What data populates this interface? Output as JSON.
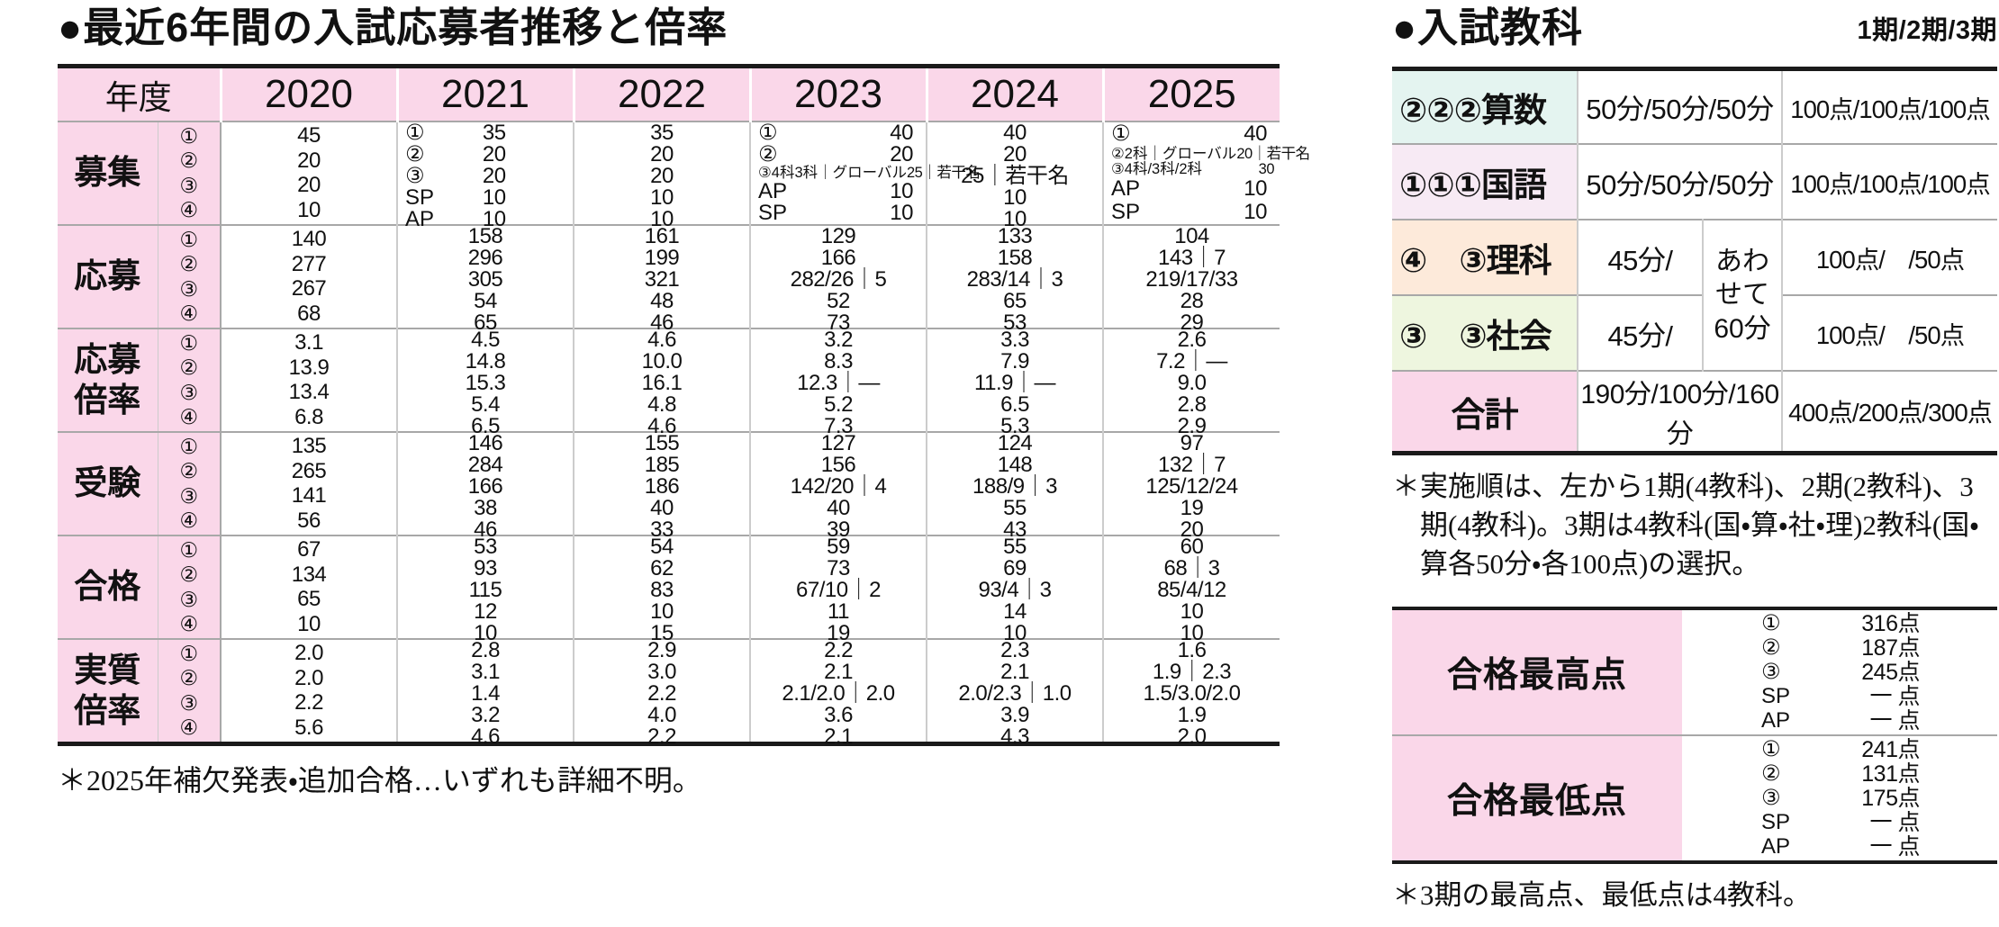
{
  "colors": {
    "pink": "#fad7e9",
    "cyan": "#e4f4f0",
    "lavender": "#f7eaf4",
    "peach": "#fdeada",
    "green": "#eef6df",
    "border_dark": "#1a1a1a",
    "border_gray": "#a8a8a8",
    "border_light": "#cccccc"
  },
  "left": {
    "title": "●最近6年間の入試応募者推移と倍率",
    "year_header": "年度",
    "years": [
      "2020",
      "2021",
      "2022",
      "2023",
      "2024",
      "2025"
    ],
    "rows": [
      {
        "label": "募集",
        "marks": [
          "①",
          "②",
          "③",
          "④"
        ],
        "cells": [
          {
            "type": "c",
            "lines": [
              "45",
              "20",
              "20",
              "10"
            ]
          },
          {
            "type": "p",
            "mid": true,
            "lines": [
              [
                "①",
                "35"
              ],
              [
                "②",
                "20"
              ],
              [
                "③",
                "20"
              ],
              [
                "SP",
                "10"
              ],
              [
                "AP",
                "10"
              ]
            ]
          },
          {
            "type": "c",
            "lines": [
              "35",
              "20",
              "20",
              "10",
              "10"
            ]
          },
          {
            "type": "p",
            "lines": [
              [
                "①",
                "40"
              ],
              [
                "②",
                "20"
              ],
              [
                "③4科3科｜グローバル",
                "25｜若干名"
              ],
              [
                "AP",
                "10"
              ],
              [
                "SP",
                "10"
              ]
            ]
          },
          {
            "type": "c",
            "lines": [
              "40",
              "20",
              "25｜若干名",
              "10",
              "10"
            ]
          },
          {
            "type": "p",
            "lines": [
              [
                "①",
                "40"
              ],
              [
                "②2科｜グローバル",
                "20｜若干名"
              ],
              [
                "③4科/3科/2科",
                "30"
              ],
              [
                "AP",
                "10"
              ],
              [
                "SP",
                "10"
              ]
            ]
          }
        ]
      },
      {
        "label": "応募",
        "marks": [
          "①",
          "②",
          "③",
          "④"
        ],
        "cells": [
          {
            "type": "c",
            "lines": [
              "140",
              "277",
              "267",
              "68"
            ]
          },
          {
            "type": "c",
            "lines": [
              "158",
              "296",
              "305",
              "54",
              "65"
            ]
          },
          {
            "type": "c",
            "lines": [
              "161",
              "199",
              "321",
              "48",
              "46"
            ]
          },
          {
            "type": "c",
            "lines": [
              "129",
              "166",
              "282/26｜5",
              "52",
              "73"
            ]
          },
          {
            "type": "c",
            "lines": [
              "133",
              "158",
              "283/14｜3",
              "65",
              "53"
            ]
          },
          {
            "type": "c",
            "lines": [
              "104",
              "143｜7",
              "219/17/33",
              "28",
              "29"
            ]
          }
        ]
      },
      {
        "label": "応募倍率",
        "marks": [
          "①",
          "②",
          "③",
          "④"
        ],
        "cells": [
          {
            "type": "c",
            "lines": [
              "3.1",
              "13.9",
              "13.4",
              "6.8"
            ]
          },
          {
            "type": "c",
            "lines": [
              "4.5",
              "14.8",
              "15.3",
              "5.4",
              "6.5"
            ]
          },
          {
            "type": "c",
            "lines": [
              "4.6",
              "10.0",
              "16.1",
              "4.8",
              "4.6"
            ]
          },
          {
            "type": "c",
            "lines": [
              "3.2",
              "8.3",
              "12.3｜—",
              "5.2",
              "7.3"
            ]
          },
          {
            "type": "c",
            "lines": [
              "3.3",
              "7.9",
              "11.9｜—",
              "6.5",
              "5.3"
            ]
          },
          {
            "type": "c",
            "lines": [
              "2.6",
              "7.2｜—",
              "9.0",
              "2.8",
              "2.9"
            ]
          }
        ]
      },
      {
        "label": "受験",
        "marks": [
          "①",
          "②",
          "③",
          "④"
        ],
        "cells": [
          {
            "type": "c",
            "lines": [
              "135",
              "265",
              "141",
              "56"
            ]
          },
          {
            "type": "c",
            "lines": [
              "146",
              "284",
              "166",
              "38",
              "46"
            ]
          },
          {
            "type": "c",
            "lines": [
              "155",
              "185",
              "186",
              "40",
              "33"
            ]
          },
          {
            "type": "c",
            "lines": [
              "127",
              "156",
              "142/20｜4",
              "40",
              "39"
            ]
          },
          {
            "type": "c",
            "lines": [
              "124",
              "148",
              "188/9｜3",
              "55",
              "43"
            ]
          },
          {
            "type": "c",
            "lines": [
              "97",
              "132｜7",
              "125/12/24",
              "19",
              "20"
            ]
          }
        ]
      },
      {
        "label": "合格",
        "marks": [
          "①",
          "②",
          "③",
          "④"
        ],
        "cells": [
          {
            "type": "c",
            "lines": [
              "67",
              "134",
              "65",
              "10"
            ]
          },
          {
            "type": "c",
            "lines": [
              "53",
              "93",
              "115",
              "12",
              "10"
            ]
          },
          {
            "type": "c",
            "lines": [
              "54",
              "62",
              "83",
              "10",
              "15"
            ]
          },
          {
            "type": "c",
            "lines": [
              "59",
              "73",
              "67/10｜2",
              "11",
              "19"
            ]
          },
          {
            "type": "c",
            "lines": [
              "55",
              "69",
              "93/4｜3",
              "14",
              "10"
            ]
          },
          {
            "type": "c",
            "lines": [
              "60",
              "68｜3",
              "85/4/12",
              "10",
              "10"
            ]
          }
        ]
      },
      {
        "label": "実質倍率",
        "marks": [
          "①",
          "②",
          "③",
          "④"
        ],
        "cells": [
          {
            "type": "c",
            "lines": [
              "2.0",
              "2.0",
              "2.2",
              "5.6"
            ]
          },
          {
            "type": "c",
            "lines": [
              "2.8",
              "3.1",
              "1.4",
              "3.2",
              "4.6"
            ]
          },
          {
            "type": "c",
            "lines": [
              "2.9",
              "3.0",
              "2.2",
              "4.0",
              "2.2"
            ]
          },
          {
            "type": "c",
            "lines": [
              "2.2",
              "2.1",
              "2.1/2.0｜2.0",
              "3.6",
              "2.1"
            ]
          },
          {
            "type": "c",
            "lines": [
              "2.3",
              "2.1",
              "2.0/2.3｜1.0",
              "3.9",
              "4.3"
            ]
          },
          {
            "type": "c",
            "lines": [
              "1.6",
              "1.9｜2.3",
              "1.5/3.0/2.0",
              "1.9",
              "2.0"
            ]
          }
        ]
      }
    ],
    "footnote": "＊2025年補欠発表・追加合格…いずれも詳細不明。"
  },
  "right": {
    "title": "●入試教科",
    "periods_note": "1期/2期/3期",
    "subjects": [
      {
        "label": "②②②算数",
        "bg": "#e4f4f0",
        "time": "50分/50分/50分",
        "points": "100点/100点/100点"
      },
      {
        "label": "①①①国語",
        "bg": "#f7eaf4",
        "time": "50分/50分/50分",
        "points": "100点/100点/100点"
      },
      {
        "label": "④　③理科",
        "bg": "#fdeada",
        "time": "45分/",
        "points": "100点/　/50点",
        "shared": true
      },
      {
        "label": "③　③社会",
        "bg": "#eef6df",
        "time": "45分/",
        "points": "100点/　/50点",
        "shared": true
      }
    ],
    "shared_time": "あわ\nせて\n60分",
    "total": {
      "label": "合計",
      "time": "190分/100分/160分",
      "points": "400点/200点/300点"
    },
    "note1": "＊実施順は、左から1期(4教科)、2期(2教科)、3期(4教科)。3期は4教科(国・算・社・理)2教科(国・算各50分・各100点)の選択。",
    "scores": [
      {
        "label": "合格最高点",
        "values": [
          [
            "①",
            "316点"
          ],
          [
            "②",
            "187点"
          ],
          [
            "③",
            "245点"
          ],
          [
            "SP",
            "一 点"
          ],
          [
            "AP",
            "一 点"
          ]
        ]
      },
      {
        "label": "合格最低点",
        "values": [
          [
            "①",
            "241点"
          ],
          [
            "②",
            "131点"
          ],
          [
            "③",
            "175点"
          ],
          [
            "SP",
            "一 点"
          ],
          [
            "AP",
            "一 点"
          ]
        ]
      }
    ],
    "note2": "＊3期の最高点、最低点は4教科。"
  }
}
